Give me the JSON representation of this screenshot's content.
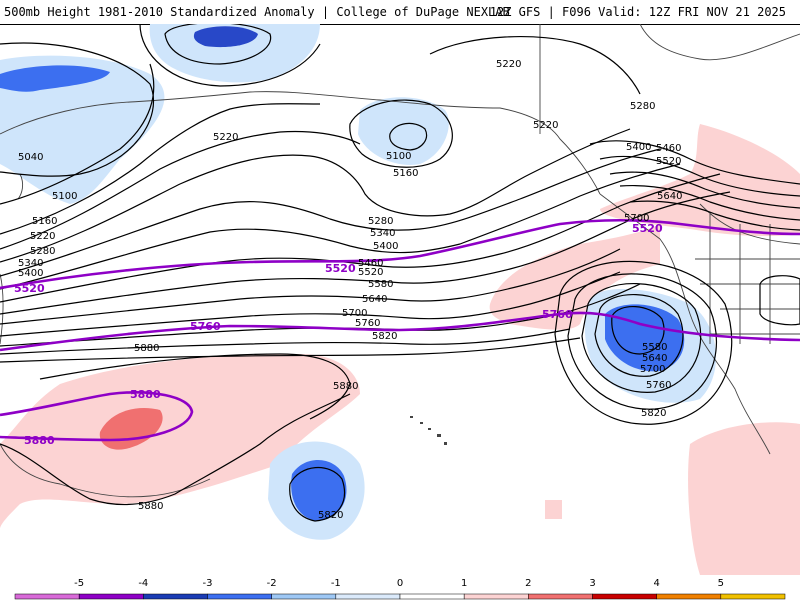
{
  "header": {
    "title": "500mb Height 1981-2010 Standardized Anomaly | College of DuPage NEXLAB",
    "valid": "12Z GFS | F096 Valid: 12Z FRI NOV 21 2025"
  },
  "colors": {
    "primary_contour": "#8e00c6",
    "height_contour": "#000000",
    "coast": "#444444",
    "neg1": "#cfe5fb",
    "neg2": "#3c6ff0",
    "neg3": "#2848c8",
    "pos1": "#fcd3d3",
    "pos2": "#f07070"
  },
  "map": {
    "height_labels": [
      {
        "text": "5220"
      },
      {
        "text": "5220"
      },
      {
        "text": "5220"
      },
      {
        "text": "5040"
      },
      {
        "text": "5100"
      },
      {
        "text": "5100"
      },
      {
        "text": "5160"
      },
      {
        "text": "5160"
      },
      {
        "text": "5220"
      },
      {
        "text": "5280"
      },
      {
        "text": "5340"
      },
      {
        "text": "5400"
      },
      {
        "text": "5280"
      },
      {
        "text": "5340"
      },
      {
        "text": "5400"
      },
      {
        "text": "5460"
      },
      {
        "text": "5520"
      },
      {
        "text": "5580"
      },
      {
        "text": "5640"
      },
      {
        "text": "5700"
      },
      {
        "text": "5760"
      },
      {
        "text": "5820"
      },
      {
        "text": "5280"
      },
      {
        "text": "5400"
      },
      {
        "text": "5460"
      },
      {
        "text": "5520"
      },
      {
        "text": "5640"
      },
      {
        "text": "5700"
      },
      {
        "text": "5880"
      },
      {
        "text": "5880"
      },
      {
        "text": "5880"
      },
      {
        "text": "5820"
      },
      {
        "text": "5580"
      },
      {
        "text": "5640"
      },
      {
        "text": "5700"
      },
      {
        "text": "5760"
      },
      {
        "text": "5820"
      }
    ],
    "primary_labels": [
      {
        "text": "5520"
      },
      {
        "text": "5520"
      },
      {
        "text": "5520"
      },
      {
        "text": "5760"
      },
      {
        "text": "5760"
      },
      {
        "text": "5880"
      },
      {
        "text": "5880"
      }
    ]
  },
  "legend": {
    "ticks": [
      "-5",
      "-4",
      "-3",
      "-2",
      "-1",
      "0",
      "1",
      "2",
      "3",
      "4",
      "5"
    ],
    "bins": [
      {
        "color": "#d86ad8"
      },
      {
        "color": "#8e00c6"
      },
      {
        "color": "#1a3cb4"
      },
      {
        "color": "#3c6ff0"
      },
      {
        "color": "#9ec8f5"
      },
      {
        "color": "#dbeafb"
      },
      {
        "color": "#ffffff"
      },
      {
        "color": "#fcd3d3"
      },
      {
        "color": "#f07070"
      },
      {
        "color": "#c80000"
      },
      {
        "color": "#f08000"
      },
      {
        "color": "#f0c000"
      }
    ]
  }
}
